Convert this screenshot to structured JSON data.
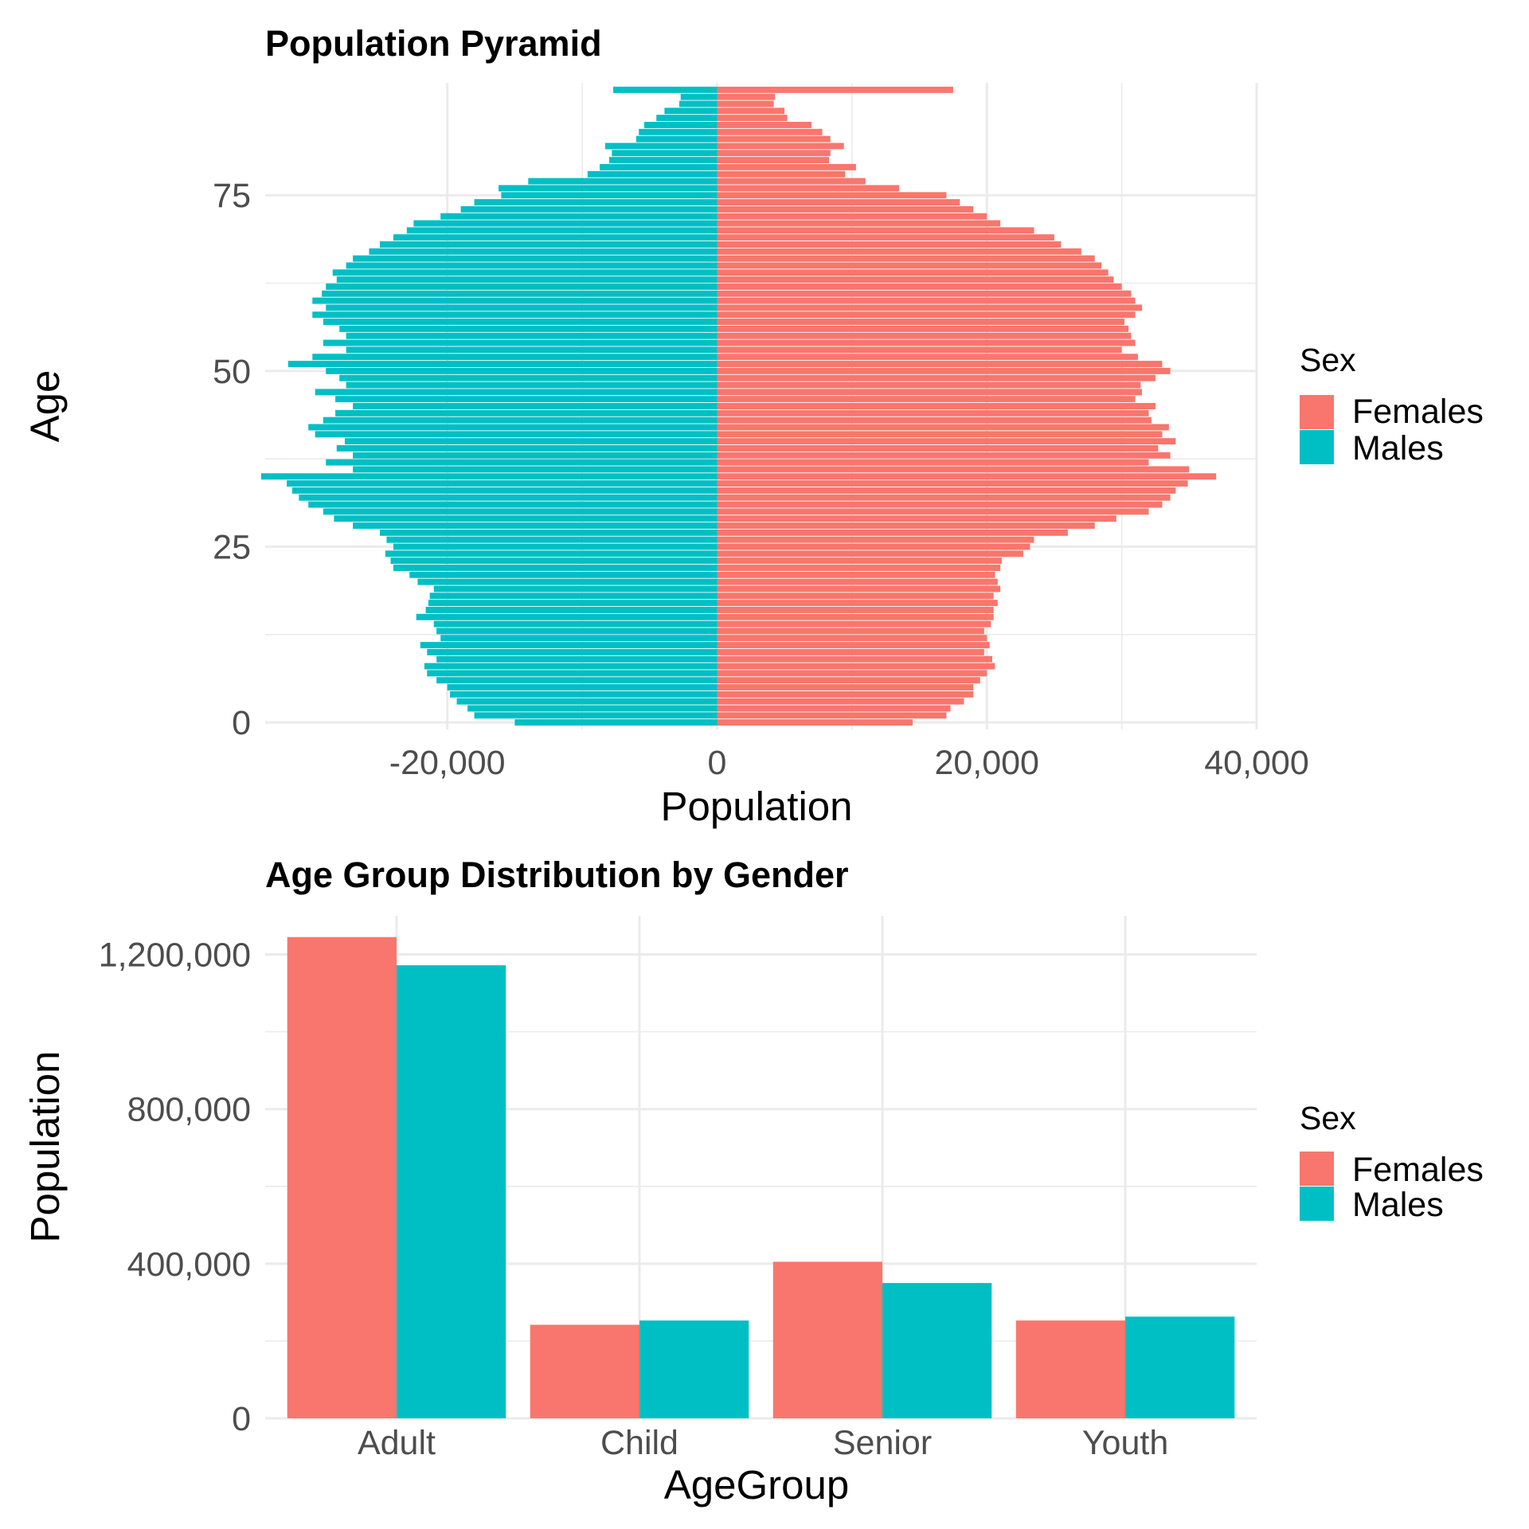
{
  "colors": {
    "Females": "#F8766D",
    "Males": "#00BFC4"
  },
  "chart_data": [
    {
      "type": "bar",
      "orientation": "horizontal",
      "title": "Population Pyramid",
      "xlabel": "Population",
      "ylabel": "Age",
      "xlim": [
        -33500,
        40000
      ],
      "ylim": [
        -1,
        91
      ],
      "xticks": [
        {
          "value": -20000,
          "label": "-20,000"
        },
        {
          "value": 0,
          "label": "0"
        },
        {
          "value": 20000,
          "label": "20,000"
        },
        {
          "value": 40000,
          "label": "40,000"
        }
      ],
      "yticks": [
        {
          "value": 0,
          "label": "0"
        },
        {
          "value": 25,
          "label": "25"
        },
        {
          "value": 50,
          "label": "50"
        },
        {
          "value": 75,
          "label": "75"
        }
      ],
      "grid": true,
      "legend": {
        "title": "Sex",
        "position": "right",
        "entries": [
          "Females",
          "Males"
        ]
      },
      "ages": [
        0,
        1,
        2,
        3,
        4,
        5,
        6,
        7,
        8,
        9,
        10,
        11,
        12,
        13,
        14,
        15,
        16,
        17,
        18,
        19,
        20,
        21,
        22,
        23,
        24,
        25,
        26,
        27,
        28,
        29,
        30,
        31,
        32,
        33,
        34,
        35,
        36,
        37,
        38,
        39,
        40,
        41,
        42,
        43,
        44,
        45,
        46,
        47,
        48,
        49,
        50,
        51,
        52,
        53,
        54,
        55,
        56,
        57,
        58,
        59,
        60,
        61,
        62,
        63,
        64,
        65,
        66,
        67,
        68,
        69,
        70,
        71,
        72,
        73,
        74,
        75,
        76,
        77,
        78,
        79,
        80,
        81,
        82,
        83,
        84,
        85,
        86,
        87,
        88,
        89,
        90
      ],
      "series": [
        {
          "name": "Females",
          "values": [
            14500,
            17000,
            17300,
            18300,
            19000,
            19000,
            19500,
            20000,
            20600,
            20400,
            19800,
            20200,
            20000,
            19800,
            20300,
            20500,
            20500,
            20800,
            20500,
            21000,
            20800,
            20600,
            21000,
            21100,
            22700,
            23200,
            23500,
            26000,
            28000,
            29600,
            32000,
            33000,
            33600,
            34000,
            34900,
            37000,
            35000,
            32000,
            33600,
            32700,
            34000,
            33000,
            33500,
            32200,
            32000,
            32500,
            31000,
            31500,
            31400,
            32500,
            33600,
            33000,
            31200,
            30000,
            31000,
            30700,
            30500,
            30200,
            31000,
            31500,
            31000,
            30700,
            30000,
            29400,
            29000,
            28500,
            28000,
            27000,
            25500,
            25000,
            23500,
            21000,
            20000,
            19000,
            18000,
            17000,
            13500,
            11000,
            9500,
            10300,
            8300,
            8400,
            9400,
            8400,
            7800,
            7000,
            5200,
            5000,
            4200,
            4300,
            17500
          ]
        },
        {
          "name": "Males",
          "values": [
            -15000,
            -18000,
            -18500,
            -19300,
            -19800,
            -20000,
            -20800,
            -21500,
            -21700,
            -20800,
            -21500,
            -22000,
            -20500,
            -20800,
            -21000,
            -22300,
            -21600,
            -21400,
            -21300,
            -21000,
            -22200,
            -22800,
            -24000,
            -24200,
            -24600,
            -24000,
            -24500,
            -25000,
            -27000,
            -28400,
            -29200,
            -30300,
            -31000,
            -31500,
            -31900,
            -33800,
            -27000,
            -29000,
            -27000,
            -28200,
            -27600,
            -29800,
            -30300,
            -29200,
            -28300,
            -27000,
            -28300,
            -29800,
            -27500,
            -28000,
            -29000,
            -31800,
            -30000,
            -27500,
            -29200,
            -27500,
            -28000,
            -29200,
            -30000,
            -29000,
            -30000,
            -29300,
            -29000,
            -28200,
            -28500,
            -27500,
            -27000,
            -25800,
            -25000,
            -24000,
            -23000,
            -22500,
            -20500,
            -19000,
            -18000,
            -16000,
            -16200,
            -14000,
            -9600,
            -8700,
            -8000,
            -7800,
            -8300,
            -6000,
            -5800,
            -5400,
            -4500,
            -3900,
            -2800,
            -2700,
            -7700
          ]
        }
      ]
    },
    {
      "type": "bar",
      "title": "Age Group Distribution by Gender",
      "xlabel": "AgeGroup",
      "ylabel": "Population",
      "categories": [
        "Adult",
        "Child",
        "Senior",
        "Youth"
      ],
      "ylim": [
        0,
        1300000
      ],
      "yticks": [
        {
          "value": 0,
          "label": "0"
        },
        {
          "value": 400000,
          "label": "400,000"
        },
        {
          "value": 800000,
          "label": "800,000"
        },
        {
          "value": 1200000,
          "label": "1,200,000"
        }
      ],
      "grid": true,
      "legend": {
        "title": "Sex",
        "position": "right",
        "entries": [
          "Females",
          "Males"
        ]
      },
      "series": [
        {
          "name": "Females",
          "values": [
            1245000,
            242000,
            405000,
            253000
          ]
        },
        {
          "name": "Males",
          "values": [
            1172000,
            253000,
            350000,
            263000
          ]
        }
      ]
    }
  ]
}
